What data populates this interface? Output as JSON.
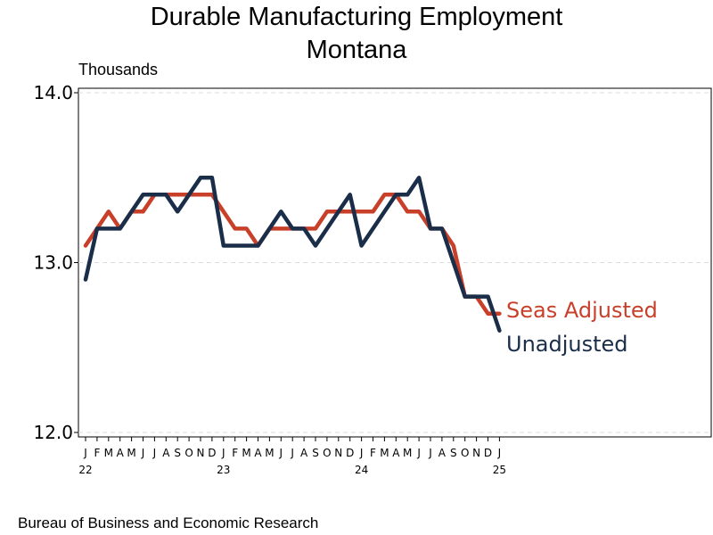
{
  "title": "Durable Manufacturing Employment",
  "subtitle": "Montana",
  "source": "Bureau of Business and Economic Research",
  "chart_data": {
    "type": "line",
    "title": "Durable Manufacturing Employment",
    "subtitle": "Montana",
    "ylabel": "Thousands",
    "xlabel": "",
    "ylim": [
      12.0,
      14.0
    ],
    "yticks": [
      "12.0",
      "13.0",
      "14.0"
    ],
    "grid": "horizontal dashed at 13.0 and 14.0",
    "month_labels": [
      "J",
      "F",
      "M",
      "A",
      "M",
      "J",
      "J",
      "A",
      "S",
      "O",
      "N",
      "D",
      "J",
      "F",
      "M",
      "A",
      "M",
      "J",
      "J",
      "A",
      "S",
      "O",
      "N",
      "D",
      "J",
      "F",
      "M",
      "A",
      "M",
      "J",
      "J",
      "A",
      "S",
      "O",
      "N",
      "D",
      "J"
    ],
    "year_labels": [
      {
        "label": "22",
        "index": 0
      },
      {
        "label": "23",
        "index": 12
      },
      {
        "label": "24",
        "index": 24
      },
      {
        "label": "25",
        "index": 36
      }
    ],
    "x": [
      "2022-01",
      "2022-02",
      "2022-03",
      "2022-04",
      "2022-05",
      "2022-06",
      "2022-07",
      "2022-08",
      "2022-09",
      "2022-10",
      "2022-11",
      "2022-12",
      "2023-01",
      "2023-02",
      "2023-03",
      "2023-04",
      "2023-05",
      "2023-06",
      "2023-07",
      "2023-08",
      "2023-09",
      "2023-10",
      "2023-11",
      "2023-12",
      "2024-01",
      "2024-02",
      "2024-03",
      "2024-04",
      "2024-05",
      "2024-06",
      "2024-07",
      "2024-08",
      "2024-09",
      "2024-10",
      "2024-11",
      "2024-12",
      "2025-01"
    ],
    "series": [
      {
        "name": "Seas Adjusted",
        "color": "#c8402a",
        "values": [
          13.1,
          13.2,
          13.3,
          13.2,
          13.3,
          13.3,
          13.4,
          13.4,
          13.4,
          13.4,
          13.4,
          13.4,
          13.3,
          13.2,
          13.2,
          13.1,
          13.2,
          13.2,
          13.2,
          13.2,
          13.2,
          13.3,
          13.3,
          13.3,
          13.3,
          13.3,
          13.4,
          13.4,
          13.3,
          13.3,
          13.2,
          13.2,
          13.1,
          12.8,
          12.8,
          12.7,
          12.7
        ]
      },
      {
        "name": "Unadjusted",
        "color": "#1a2e4a",
        "values": [
          12.9,
          13.2,
          13.2,
          13.2,
          13.3,
          13.4,
          13.4,
          13.4,
          13.3,
          13.4,
          13.5,
          13.5,
          13.1,
          13.1,
          13.1,
          13.1,
          13.2,
          13.3,
          13.2,
          13.2,
          13.1,
          13.2,
          13.3,
          13.4,
          13.1,
          13.2,
          13.3,
          13.4,
          13.4,
          13.5,
          13.2,
          13.2,
          13.0,
          12.8,
          12.8,
          12.8,
          12.6
        ]
      }
    ]
  }
}
